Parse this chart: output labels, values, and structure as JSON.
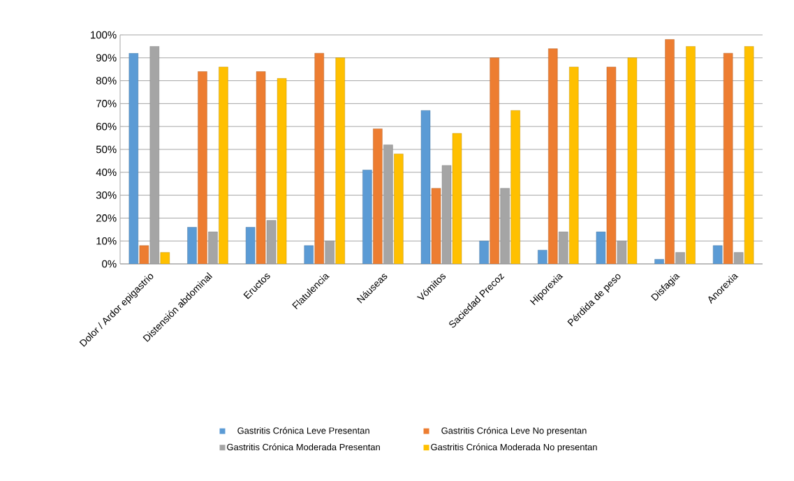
{
  "chart_data": {
    "type": "bar",
    "categories": [
      "Dolor / Ardor epigastrio",
      "Distensión abdominal",
      "Eructos",
      "Flatulencia",
      "Náuseas",
      "Vómitos",
      "Saciedad Precoz",
      "Hiporexia",
      "Pérdida de peso",
      "Disfagia",
      "Anorexia"
    ],
    "series": [
      {
        "name": "Gastritis Crónica Leve Presentan",
        "color": "#5b9bd5",
        "values": [
          92,
          16,
          16,
          8,
          41,
          67,
          10,
          6,
          14,
          2,
          8
        ]
      },
      {
        "name": "Gastritis Crónica Leve No presentan",
        "color": "#ed7d31",
        "values": [
          8,
          84,
          84,
          92,
          59,
          33,
          90,
          94,
          86,
          98,
          92
        ]
      },
      {
        "name": "Gastritis Crónica Moderada Presentan",
        "color": "#a5a5a5",
        "values": [
          95,
          14,
          19,
          10,
          52,
          43,
          33,
          14,
          10,
          5,
          5
        ]
      },
      {
        "name": "Gastritis Crónica Moderada No presentan",
        "color": "#ffc000",
        "values": [
          5,
          86,
          81,
          90,
          48,
          57,
          67,
          86,
          90,
          95,
          95
        ]
      }
    ],
    "ylim": [
      0,
      100
    ],
    "yticks": [
      {
        "value": 0,
        "label": "0%"
      },
      {
        "value": 10,
        "label": "10%"
      },
      {
        "value": 20,
        "label": "20%"
      },
      {
        "value": 30,
        "label": "30%"
      },
      {
        "value": 40,
        "label": "40%"
      },
      {
        "value": 50,
        "label": "50%"
      },
      {
        "value": 60,
        "label": "60%"
      },
      {
        "value": 70,
        "label": "70%"
      },
      {
        "value": 80,
        "label": "80%"
      },
      {
        "value": 90,
        "label": "90%"
      },
      {
        "value": 100,
        "label": "100%"
      }
    ],
    "grid": "y",
    "legend": "bottom"
  }
}
